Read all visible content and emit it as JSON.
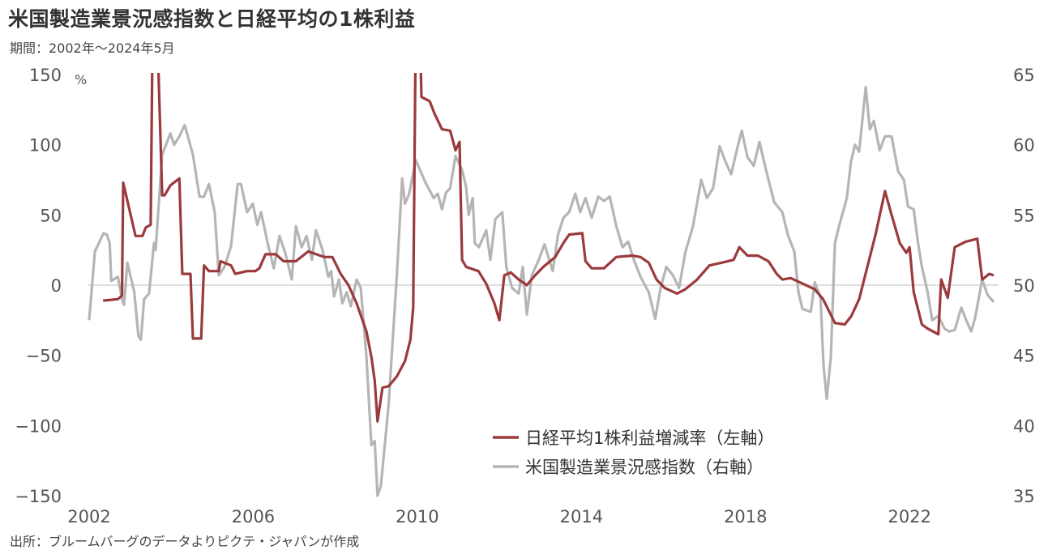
{
  "header": {
    "title": "米国製造業景況感指数と日経平均の1株利益",
    "subtitle": "期間：2002年～2024年5月"
  },
  "footer": {
    "source": "出所：ブルームバーグのデータよりピクテ・ジャパンが作成"
  },
  "chart_data": {
    "type": "line",
    "title": "米国製造業景況感指数と日経平均の1株利益",
    "left_axis": {
      "unit": "%",
      "ylim": [
        -150,
        150
      ],
      "ticks": [
        "150",
        "100",
        "50",
        "0",
        "-50",
        "-100",
        "-150"
      ],
      "negative_tick_color": "#d9302c"
    },
    "right_axis": {
      "ylim": [
        35,
        65
      ],
      "ticks": [
        "65",
        "60",
        "55",
        "50",
        "45",
        "40",
        "35"
      ]
    },
    "x_axis": {
      "xlim": [
        2002,
        2024.4
      ],
      "ticks": [
        "2002",
        "2006",
        "2010",
        "2014",
        "2018",
        "2022"
      ]
    },
    "grid": false,
    "zero_line": true,
    "legend_placement": "bottom-center",
    "series": [
      {
        "name": "日経平均1株利益増減率（左軸）",
        "axis": "left",
        "color": "#9b3a3c",
        "x": [
          2002.34,
          2002.7,
          2002.8,
          2002.83,
          2003.13,
          2003.3,
          2003.38,
          2003.5,
          2003.54,
          2003.62,
          2003.78,
          2003.84,
          2003.98,
          2004.2,
          2004.27,
          2004.47,
          2004.53,
          2004.73,
          2004.8,
          2004.92,
          2005.16,
          2005.2,
          2005.46,
          2005.56,
          2005.85,
          2006.05,
          2006.15,
          2006.3,
          2006.55,
          2006.74,
          2007.04,
          2007.34,
          2007.73,
          2007.93,
          2008.13,
          2008.32,
          2008.52,
          2008.76,
          2008.88,
          2008.96,
          2009.03,
          2009.15,
          2009.3,
          2009.5,
          2009.7,
          2009.83,
          2009.9,
          2009.95,
          2010.03,
          2010.1,
          2010.3,
          2010.42,
          2010.6,
          2010.8,
          2010.93,
          2011.03,
          2011.09,
          2011.19,
          2011.49,
          2011.68,
          2011.88,
          2012.0,
          2012.12,
          2012.28,
          2012.47,
          2012.67,
          2012.87,
          2013.07,
          2013.36,
          2013.56,
          2013.7,
          2014.02,
          2014.1,
          2014.25,
          2014.55,
          2014.85,
          2015.24,
          2015.44,
          2015.64,
          2015.83,
          2016.03,
          2016.33,
          2016.53,
          2016.82,
          2017.12,
          2017.42,
          2017.71,
          2017.85,
          2018.05,
          2018.3,
          2018.56,
          2018.76,
          2018.9,
          2019.1,
          2019.4,
          2019.69,
          2019.89,
          2020.18,
          2020.42,
          2020.58,
          2020.77,
          2020.97,
          2021.17,
          2021.4,
          2021.56,
          2021.76,
          2021.92,
          2022.0,
          2022.1,
          2022.3,
          2022.44,
          2022.7,
          2022.77,
          2022.93,
          2023.1,
          2023.37,
          2023.65,
          2023.77,
          2023.94,
          2024.05
        ],
        "values": [
          -11,
          -10,
          -7.5,
          73,
          35,
          35,
          41,
          43,
          160,
          220,
          64,
          64,
          71,
          76,
          8,
          8,
          -38,
          -38,
          14,
          10,
          10,
          17,
          14,
          8,
          10,
          10,
          12,
          22,
          22,
          17,
          17,
          24,
          20,
          20,
          8,
          0,
          -13,
          -33,
          -51,
          -68,
          -97,
          -73,
          -72,
          -65,
          -54,
          -39,
          -16,
          150,
          220,
          134,
          131,
          122,
          111,
          110,
          96,
          102,
          18,
          13,
          10,
          1,
          -13,
          -25,
          7,
          9,
          4,
          0,
          7,
          13,
          20,
          30,
          36,
          37,
          17,
          12,
          12,
          20,
          21,
          20,
          16,
          4,
          -2,
          -6,
          -3,
          4,
          14,
          16,
          18,
          27,
          21,
          21,
          17,
          8,
          4,
          5,
          1,
          -3,
          -10,
          -27,
          -28,
          -22,
          -10,
          13,
          36,
          67,
          50,
          30,
          23,
          27,
          -5,
          -28,
          -31,
          -35,
          4,
          -9,
          27,
          31,
          33,
          4,
          8,
          7
        ]
      },
      {
        "name": "米国製造業景況感指数（右軸）",
        "axis": "right",
        "color": "#b5b5b5",
        "x": [
          2002.0,
          2002.14,
          2002.35,
          2002.43,
          2002.5,
          2002.54,
          2002.7,
          2002.8,
          2002.85,
          2002.93,
          2003.1,
          2003.2,
          2003.26,
          2003.34,
          2003.46,
          2003.58,
          2003.62,
          2003.78,
          2003.98,
          2004.07,
          2004.2,
          2004.33,
          2004.53,
          2004.69,
          2004.8,
          2004.92,
          2005.06,
          2005.16,
          2005.3,
          2005.46,
          2005.62,
          2005.7,
          2005.85,
          2005.99,
          2006.1,
          2006.19,
          2006.35,
          2006.5,
          2006.64,
          2006.78,
          2006.94,
          2007.04,
          2007.18,
          2007.3,
          2007.43,
          2007.53,
          2007.69,
          2007.83,
          2007.9,
          2007.97,
          2008.09,
          2008.17,
          2008.28,
          2008.38,
          2008.52,
          2008.62,
          2008.76,
          2008.88,
          2008.96,
          2009.03,
          2009.11,
          2009.3,
          2009.5,
          2009.63,
          2009.7,
          2009.8,
          2009.96,
          2010.2,
          2010.4,
          2010.5,
          2010.6,
          2010.7,
          2010.8,
          2010.93,
          2011.09,
          2011.19,
          2011.25,
          2011.35,
          2011.4,
          2011.5,
          2011.68,
          2011.78,
          2011.9,
          2012.07,
          2012.17,
          2012.31,
          2012.47,
          2012.57,
          2012.67,
          2012.79,
          2012.96,
          2013.1,
          2013.3,
          2013.43,
          2013.56,
          2013.7,
          2013.85,
          2013.97,
          2014.1,
          2014.25,
          2014.41,
          2014.55,
          2014.69,
          2014.85,
          2015.0,
          2015.14,
          2015.28,
          2015.44,
          2015.64,
          2015.8,
          2015.93,
          2016.07,
          2016.23,
          2016.38,
          2016.53,
          2016.72,
          2016.92,
          2017.06,
          2017.21,
          2017.37,
          2017.51,
          2017.65,
          2017.81,
          2017.91,
          2018.05,
          2018.2,
          2018.34,
          2018.5,
          2018.7,
          2018.9,
          2019.03,
          2019.19,
          2019.29,
          2019.39,
          2019.59,
          2019.69,
          2019.83,
          2019.9,
          2019.98,
          2020.08,
          2020.18,
          2020.28,
          2020.47,
          2020.57,
          2020.67,
          2020.77,
          2020.93,
          2021.03,
          2021.13,
          2021.27,
          2021.4,
          2021.56,
          2021.72,
          2021.86,
          2021.96,
          2022.1,
          2022.2,
          2022.3,
          2022.44,
          2022.55,
          2022.7,
          2022.85,
          2022.96,
          2023.1,
          2023.26,
          2023.38,
          2023.5,
          2023.6,
          2023.77,
          2023.9,
          2024.05
        ],
        "values": [
          47.5,
          52.4,
          53.7,
          53.6,
          53.0,
          50.3,
          50.6,
          49,
          48.6,
          51.6,
          49.5,
          46.4,
          46.1,
          49,
          49.4,
          53,
          52.5,
          59.3,
          60.8,
          60,
          60.6,
          61.4,
          59.3,
          56.3,
          56.3,
          57.2,
          55.2,
          50.7,
          51.3,
          52.8,
          57.2,
          57.2,
          55.2,
          55.8,
          54.3,
          55.2,
          53,
          51.2,
          53.5,
          52.3,
          50.4,
          54.2,
          52.7,
          53.5,
          51.8,
          53.9,
          52.5,
          50.6,
          51,
          49.2,
          50.4,
          48.7,
          49.5,
          48.5,
          50.4,
          49.8,
          44.9,
          38.6,
          38.9,
          35,
          35.7,
          41.5,
          50.7,
          57.6,
          55.8,
          56.5,
          58.9,
          57.3,
          56.2,
          56.5,
          55.4,
          56.6,
          56.9,
          59.2,
          58.2,
          57,
          55,
          56.2,
          53,
          52.7,
          53.9,
          51.8,
          54.7,
          55.2,
          51.3,
          49.8,
          49.4,
          51.3,
          47.9,
          50.7,
          51.8,
          52.9,
          51,
          53.6,
          54.8,
          55.2,
          56.5,
          55.2,
          56.2,
          54.8,
          56.3,
          56,
          56.3,
          54.2,
          52.7,
          53.1,
          51.8,
          50.6,
          49.5,
          47.6,
          49.8,
          51.3,
          50.7,
          49.8,
          52.3,
          54.2,
          57.5,
          56.2,
          56.9,
          59.9,
          58.8,
          57.9,
          59.9,
          61,
          59.1,
          58.5,
          60.2,
          58.2,
          55.9,
          55.2,
          53.6,
          52.4,
          49.5,
          48.3,
          48.1,
          50.2,
          49.1,
          44.3,
          41.9,
          44.9,
          53,
          54.2,
          56.2,
          58.8,
          60,
          59.5,
          64.1,
          61.1,
          61.7,
          59.6,
          60.6,
          60.6,
          58.1,
          57.5,
          55.6,
          55.4,
          53.1,
          51.3,
          49.5,
          47.5,
          47.8,
          46.9,
          46.7,
          46.8,
          48.4,
          47.5,
          46.7,
          47.7,
          50.4,
          49.3,
          48.8
        ]
      }
    ]
  }
}
